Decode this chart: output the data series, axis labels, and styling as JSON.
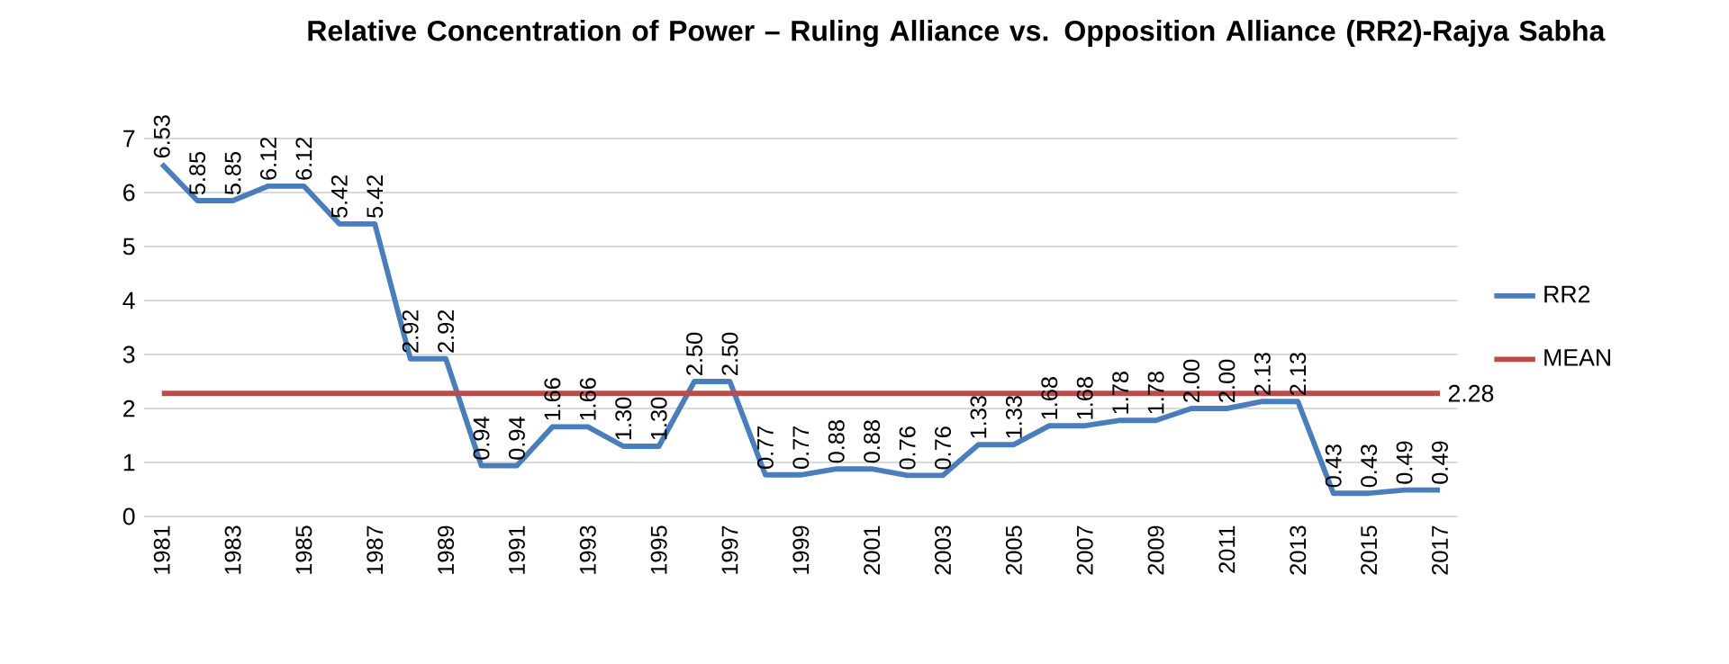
{
  "chart_data": {
    "type": "line",
    "title": "Relative Concentration of Power – Ruling Alliance vs. Opposition Alliance (RR2)-Rajya Sabha",
    "categories": [
      "1981",
      null,
      "1983",
      null,
      "1985",
      null,
      "1987",
      null,
      "1989",
      null,
      "1991",
      null,
      "1993",
      null,
      "1995",
      null,
      "1997",
      null,
      "1999",
      null,
      "2001",
      null,
      "2003",
      null,
      "2005",
      null,
      "2007",
      null,
      "2009",
      null,
      "2011",
      null,
      "2013",
      null,
      "2015",
      null,
      "2017"
    ],
    "series": [
      {
        "name": "RR2",
        "color": "#4a7ebb",
        "values": [
          6.53,
          5.85,
          5.85,
          6.12,
          6.12,
          5.42,
          5.42,
          2.92,
          2.92,
          0.94,
          0.94,
          1.66,
          1.66,
          1.3,
          1.3,
          2.5,
          2.5,
          0.77,
          0.77,
          0.88,
          0.88,
          0.76,
          0.76,
          1.33,
          1.33,
          1.68,
          1.68,
          1.78,
          1.78,
          2.0,
          2.0,
          2.13,
          2.13,
          0.43,
          0.43,
          0.49,
          0.49
        ],
        "value_labels": [
          "6.53",
          "5.85",
          "5.85",
          "6.12",
          "6.12",
          "5.42",
          "5.42",
          "2.92",
          "2.92",
          "0.94",
          "0.94",
          "1.66",
          "1.66",
          "1.30",
          "1.30",
          "2.50",
          "2.50",
          "0.77",
          "0.77",
          "0.88",
          "0.88",
          "0.76",
          "0.76",
          "1.33",
          "1.33",
          "1.68",
          "1.68",
          "1.78",
          "1.78",
          "2.00",
          "2.00",
          "2.13",
          "2.13",
          "0.43",
          "0.43",
          "0.49",
          "0.49"
        ]
      },
      {
        "name": "MEAN",
        "color": "#be4b48",
        "values": [
          2.28,
          2.28,
          2.28,
          2.28,
          2.28,
          2.28,
          2.28,
          2.28,
          2.28,
          2.28,
          2.28,
          2.28,
          2.28,
          2.28,
          2.28,
          2.28,
          2.28,
          2.28,
          2.28,
          2.28,
          2.28,
          2.28,
          2.28,
          2.28,
          2.28,
          2.28,
          2.28,
          2.28,
          2.28,
          2.28,
          2.28,
          2.28,
          2.28,
          2.28,
          2.28,
          2.28,
          2.28
        ],
        "value_labels": [
          null,
          null,
          null,
          null,
          null,
          null,
          null,
          null,
          null,
          null,
          null,
          null,
          null,
          null,
          null,
          null,
          null,
          null,
          null,
          null,
          null,
          null,
          null,
          null,
          null,
          null,
          null,
          null,
          null,
          null,
          null,
          null,
          null,
          null,
          null,
          null,
          "2.28"
        ]
      }
    ],
    "ylim": [
      0,
      7
    ],
    "yticks": [
      0,
      1,
      2,
      3,
      4,
      5,
      6,
      7
    ],
    "grid": "y",
    "legend": "right",
    "marker": "none",
    "line_style": "solid"
  }
}
